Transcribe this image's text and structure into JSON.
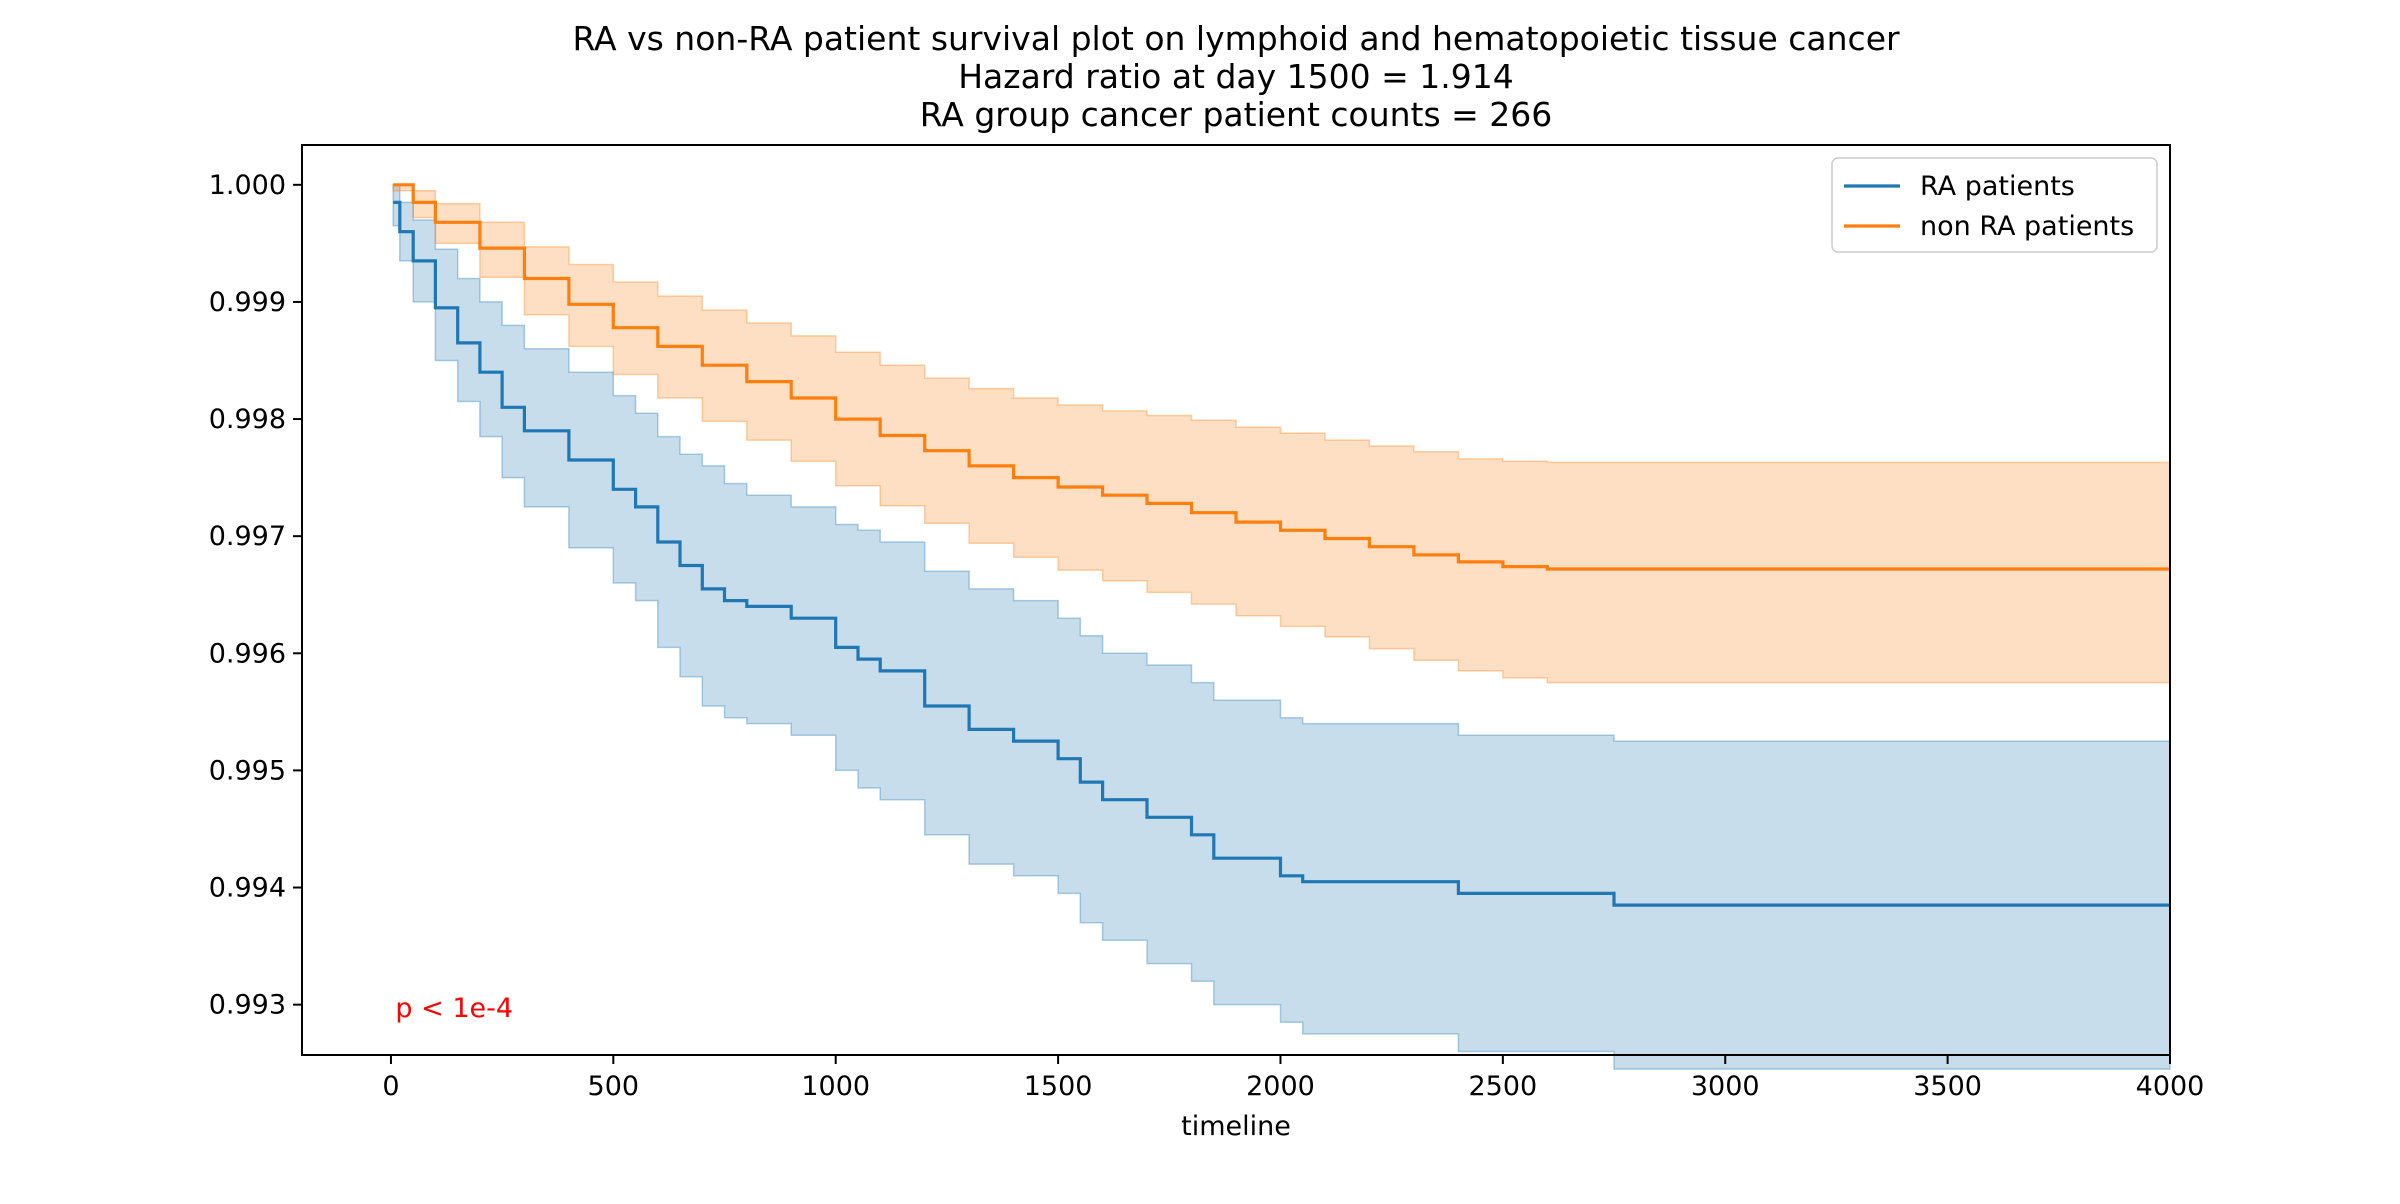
{
  "chart_data": {
    "type": "line",
    "title_lines": [
      "RA vs non-RA patient survival plot on lymphoid and hematopoietic tissue cancer",
      "Hazard ratio at day 1500 = 1.914",
      "RA group cancer patient counts = 266"
    ],
    "xlabel": "timeline",
    "ylabel": "",
    "xlim": [
      -200,
      4000
    ],
    "ylim": [
      0.99257,
      1.00034
    ],
    "x_ticks": [
      0,
      500,
      1000,
      1500,
      2000,
      2500,
      3000,
      3500,
      4000
    ],
    "y_ticks": [
      0.993,
      0.994,
      0.995,
      0.996,
      0.997,
      0.998,
      0.999,
      1.0
    ],
    "y_tick_labels": [
      "0.993",
      "0.994",
      "0.995",
      "0.996",
      "0.997",
      "0.998",
      "0.999",
      "1.000"
    ],
    "grid": false,
    "legend_position": "top-right",
    "annotation": {
      "text": "p < 1e-4",
      "x": 10,
      "y": 0.99297,
      "color": "#ff0000"
    },
    "series": [
      {
        "name": "RA patients",
        "color": "#1f77b4",
        "x": [
          5,
          20,
          50,
          100,
          150,
          200,
          250,
          300,
          400,
          500,
          550,
          600,
          650,
          700,
          750,
          800,
          900,
          1000,
          1050,
          1100,
          1200,
          1300,
          1400,
          1500,
          1550,
          1600,
          1700,
          1800,
          1850,
          2000,
          2050,
          2400,
          2750,
          4000
        ],
        "y": [
          0.99985,
          0.9996,
          0.99935,
          0.99895,
          0.99865,
          0.9984,
          0.9981,
          0.9979,
          0.99765,
          0.9974,
          0.99725,
          0.99695,
          0.99675,
          0.99655,
          0.99645,
          0.9964,
          0.9963,
          0.99605,
          0.99595,
          0.99585,
          0.99555,
          0.99535,
          0.99525,
          0.9951,
          0.9949,
          0.99475,
          0.9946,
          0.99445,
          0.99425,
          0.9941,
          0.99405,
          0.99395,
          0.99385,
          0.99385
        ],
        "ci_lower": [
          0.99965,
          0.99935,
          0.999,
          0.9985,
          0.99815,
          0.99785,
          0.9975,
          0.99725,
          0.9969,
          0.9966,
          0.99645,
          0.99605,
          0.9958,
          0.99555,
          0.99545,
          0.9954,
          0.9953,
          0.995,
          0.99485,
          0.99475,
          0.99445,
          0.9942,
          0.9941,
          0.99395,
          0.9937,
          0.99355,
          0.99335,
          0.9932,
          0.993,
          0.99285,
          0.99275,
          0.9926,
          0.99245,
          0.99245
        ],
        "ci_upper": [
          1.0,
          0.99985,
          0.9997,
          0.99945,
          0.9992,
          0.999,
          0.9988,
          0.9986,
          0.9984,
          0.9982,
          0.99805,
          0.99785,
          0.9977,
          0.9976,
          0.99745,
          0.99735,
          0.99725,
          0.9971,
          0.99705,
          0.99695,
          0.9967,
          0.99655,
          0.99645,
          0.9963,
          0.99615,
          0.996,
          0.9959,
          0.99575,
          0.9956,
          0.99545,
          0.9954,
          0.9953,
          0.99525,
          0.99525
        ]
      },
      {
        "name": "non RA patients",
        "color": "#ff7f0e",
        "x": [
          5,
          50,
          100,
          200,
          300,
          400,
          500,
          600,
          700,
          800,
          900,
          1000,
          1100,
          1200,
          1300,
          1400,
          1500,
          1600,
          1700,
          1800,
          1900,
          2000,
          2100,
          2200,
          2300,
          2400,
          2500,
          2600,
          4000
        ],
        "y": [
          1.0,
          0.99985,
          0.99968,
          0.99946,
          0.9992,
          0.99898,
          0.99878,
          0.99862,
          0.99846,
          0.99832,
          0.99818,
          0.998,
          0.99786,
          0.99773,
          0.9976,
          0.9975,
          0.99742,
          0.99735,
          0.99728,
          0.9972,
          0.99712,
          0.99705,
          0.99698,
          0.99691,
          0.99684,
          0.99678,
          0.99674,
          0.99672,
          0.99672
        ],
        "ci_lower": [
          0.99995,
          0.99972,
          0.9995,
          0.99921,
          0.99889,
          0.99862,
          0.99838,
          0.99818,
          0.99798,
          0.99782,
          0.99764,
          0.99743,
          0.99726,
          0.99711,
          0.99694,
          0.99682,
          0.99671,
          0.99662,
          0.99652,
          0.99642,
          0.99632,
          0.99623,
          0.99614,
          0.99604,
          0.99594,
          0.99585,
          0.99579,
          0.99575,
          0.99575
        ],
        "ci_upper": [
          1.0,
          0.99995,
          0.99984,
          0.99968,
          0.99947,
          0.99932,
          0.99917,
          0.99905,
          0.99893,
          0.99882,
          0.99871,
          0.99857,
          0.99846,
          0.99835,
          0.99826,
          0.99818,
          0.99812,
          0.99807,
          0.99803,
          0.99799,
          0.99793,
          0.99788,
          0.99782,
          0.99777,
          0.99772,
          0.99766,
          0.99764,
          0.99763,
          0.99763
        ]
      }
    ]
  }
}
